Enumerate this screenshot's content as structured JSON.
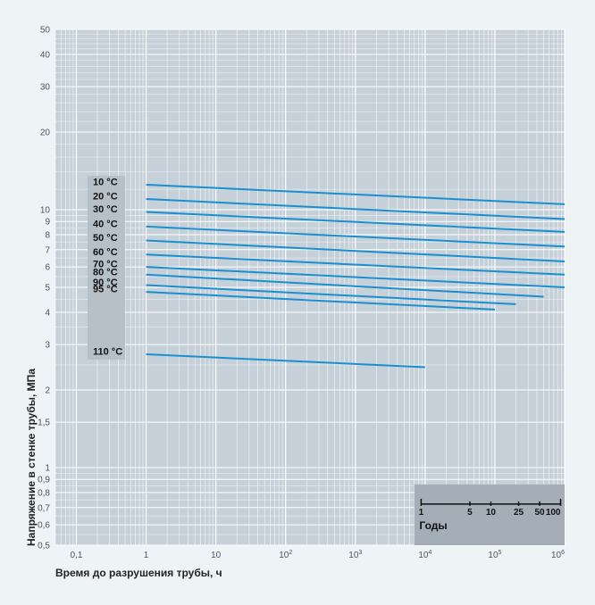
{
  "chart_data": {
    "type": "line",
    "x_scale": "log",
    "y_scale": "log",
    "xlim": [
      0.05,
      1000000
    ],
    "ylim": [
      0.5,
      50
    ],
    "grid": true,
    "xlabel": "Время до разрушения трубы, ч",
    "ylabel": "Напряжение в стенке трубы, МПа",
    "x_ticks": [
      {
        "value": 0.1,
        "label": "0,1"
      },
      {
        "value": 1,
        "label": "1"
      },
      {
        "value": 10,
        "label": "10"
      },
      {
        "value": 100,
        "label": "10",
        "exp": "2"
      },
      {
        "value": 1000,
        "label": "10",
        "exp": "3"
      },
      {
        "value": 10000,
        "label": "10",
        "exp": "4"
      },
      {
        "value": 100000,
        "label": "10",
        "exp": "5"
      },
      {
        "value": 1000000,
        "label": "10",
        "exp": "6"
      }
    ],
    "y_ticks": [
      {
        "value": 0.5,
        "label": "0,5"
      },
      {
        "value": 0.6,
        "label": "0,6"
      },
      {
        "value": 0.7,
        "label": "0,7"
      },
      {
        "value": 0.8,
        "label": "0,8"
      },
      {
        "value": 0.9,
        "label": "0,9"
      },
      {
        "value": 1,
        "label": "1"
      },
      {
        "value": 1.5,
        "label": "1,5"
      },
      {
        "value": 2,
        "label": "2"
      },
      {
        "value": 3,
        "label": "3"
      },
      {
        "value": 4,
        "label": "4"
      },
      {
        "value": 5,
        "label": "5"
      },
      {
        "value": 6,
        "label": "6"
      },
      {
        "value": 7,
        "label": "7"
      },
      {
        "value": 8,
        "label": "8"
      },
      {
        "value": 9,
        "label": "9"
      },
      {
        "value": 10,
        "label": "10"
      },
      {
        "value": 20,
        "label": "20"
      },
      {
        "value": 30,
        "label": "30"
      },
      {
        "value": 40,
        "label": "40"
      },
      {
        "value": 50,
        "label": "50"
      }
    ],
    "series": [
      {
        "name": "10 °C",
        "x": [
          1,
          1000000
        ],
        "y": [
          12.5,
          10.5
        ]
      },
      {
        "name": "20 °C",
        "x": [
          1,
          1000000
        ],
        "y": [
          11.0,
          9.2
        ]
      },
      {
        "name": "30 °C",
        "x": [
          1,
          1000000
        ],
        "y": [
          9.8,
          8.2
        ]
      },
      {
        "name": "40 °C",
        "x": [
          1,
          1000000
        ],
        "y": [
          8.6,
          7.2
        ]
      },
      {
        "name": "50 °C",
        "x": [
          1,
          1000000
        ],
        "y": [
          7.6,
          6.3
        ]
      },
      {
        "name": "60 °C",
        "x": [
          1,
          1000000
        ],
        "y": [
          6.7,
          5.6
        ]
      },
      {
        "name": "70 °C",
        "x": [
          1,
          1000000
        ],
        "y": [
          6.0,
          5.0
        ]
      },
      {
        "name": "80 °C",
        "x": [
          1,
          500000
        ],
        "y": [
          5.6,
          4.6
        ]
      },
      {
        "name": "90 °C",
        "x": [
          1,
          200000
        ],
        "y": [
          5.1,
          4.3
        ]
      },
      {
        "name": "95 °C",
        "x": [
          1,
          100000
        ],
        "y": [
          4.8,
          4.1
        ]
      },
      {
        "name": "110 °C",
        "x": [
          1,
          10000
        ],
        "y": [
          2.75,
          2.45
        ]
      }
    ],
    "years_scale": {
      "title": "Годы",
      "ticks": [
        {
          "years": 1,
          "label": "1"
        },
        {
          "years": 5,
          "label": "5"
        },
        {
          "years": 10,
          "label": "10"
        },
        {
          "years": 25,
          "label": "25"
        },
        {
          "years": 50,
          "label": "50"
        },
        {
          "years": 100,
          "label": "100"
        }
      ]
    },
    "colors": {
      "line": "#1a8fd0",
      "plot_bg": "#c5d0d9",
      "grid_major": "#ffffff",
      "label_panel": "#b5c0c9",
      "years_panel": "#a3aeb8"
    }
  }
}
